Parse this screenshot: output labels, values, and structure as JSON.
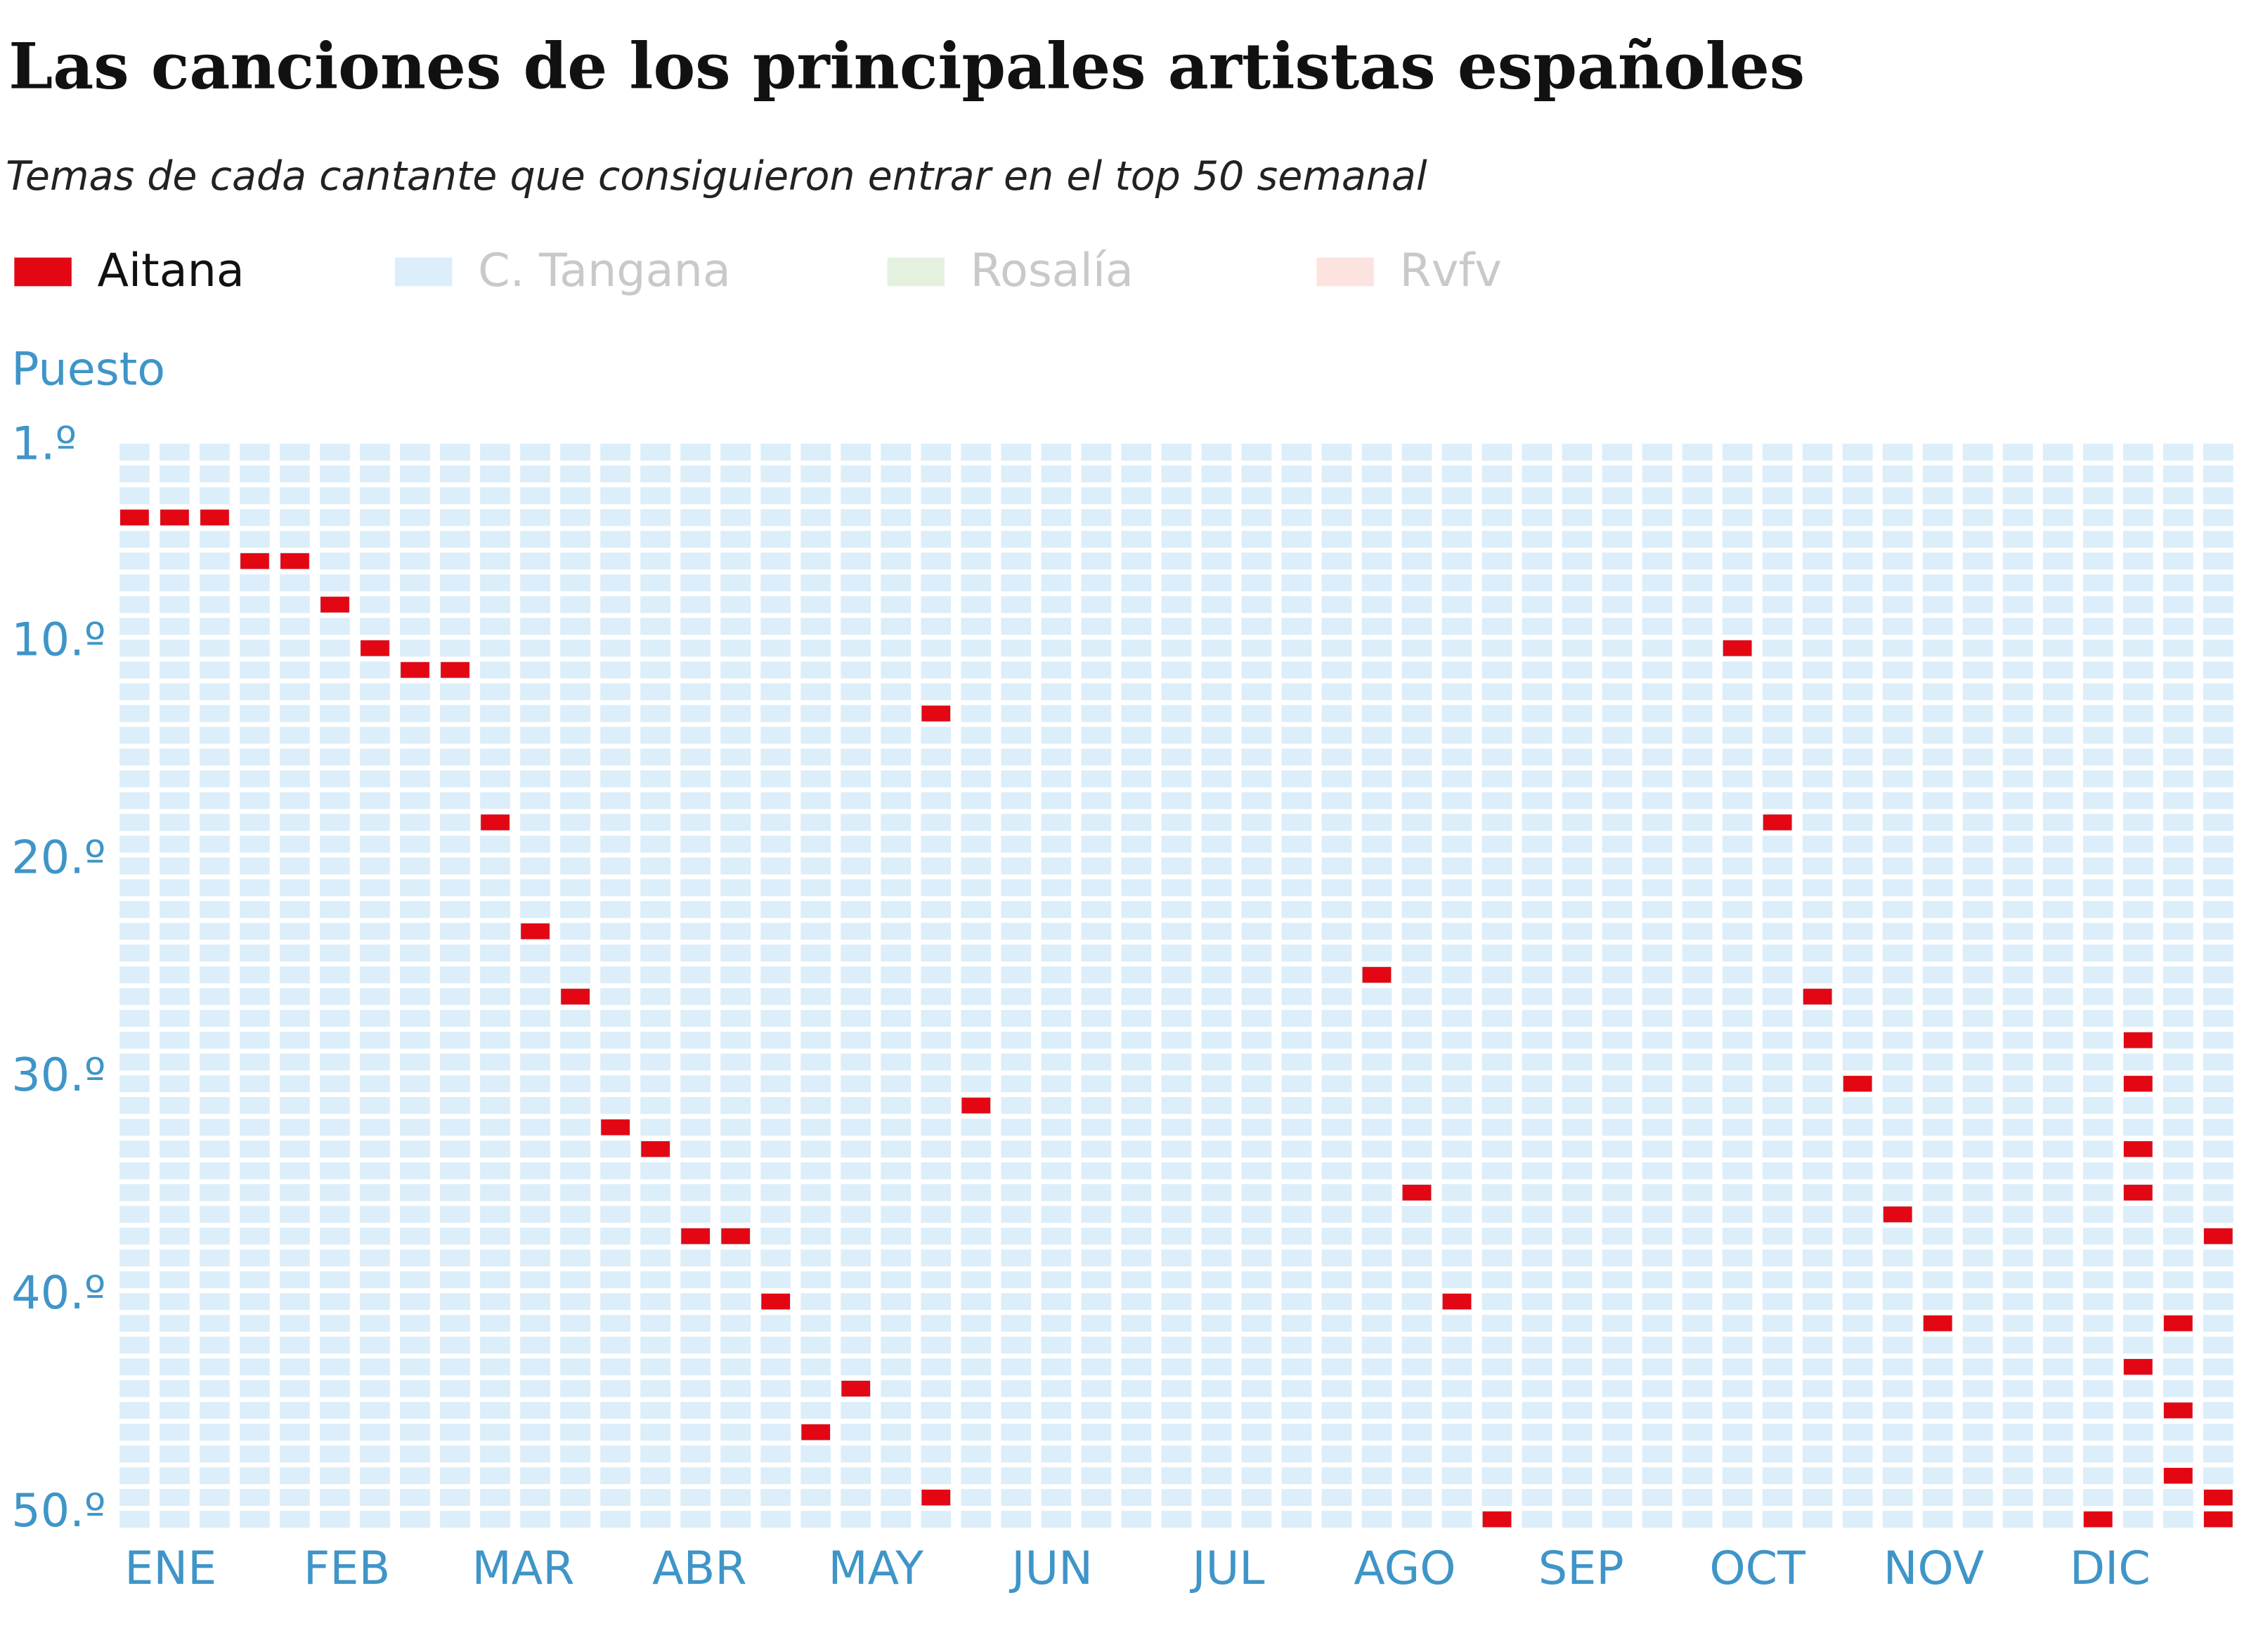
{
  "chart_data": {
    "type": "scatter",
    "title": "Las canciones de los principales artistas españoles",
    "subtitle": "Temas de cada cantante que consiguieron entrar en el top 50 semanal",
    "y_label": "Puesto",
    "xlim": [
      1,
      53
    ],
    "ylim": [
      1,
      50
    ],
    "y_inverted": true,
    "cell_color": "#dbeef9",
    "xticks": [
      {
        "value": 1.9,
        "label": "ENE"
      },
      {
        "value": 6.3,
        "label": "FEB"
      },
      {
        "value": 10.7,
        "label": "MAR"
      },
      {
        "value": 15.1,
        "label": "ABR"
      },
      {
        "value": 19.5,
        "label": "MAY"
      },
      {
        "value": 23.9,
        "label": "JUN"
      },
      {
        "value": 28.3,
        "label": "JUL"
      },
      {
        "value": 32.7,
        "label": "AGO"
      },
      {
        "value": 37.1,
        "label": "SEP"
      },
      {
        "value": 41.5,
        "label": "OCT"
      },
      {
        "value": 45.9,
        "label": "NOV"
      },
      {
        "value": 50.3,
        "label": "DIC"
      }
    ],
    "yticks": [
      {
        "value": 1,
        "label": "1.º"
      },
      {
        "value": 10,
        "label": "10.º"
      },
      {
        "value": 20,
        "label": "20.º"
      },
      {
        "value": 30,
        "label": "30.º"
      },
      {
        "value": 40,
        "label": "40.º"
      },
      {
        "value": 50,
        "label": "50.º"
      }
    ],
    "series": [
      {
        "name": "Aitana",
        "color": "#e30613",
        "visible": true,
        "x": [
          1,
          2,
          3,
          4,
          5,
          6,
          7,
          8,
          9,
          10,
          11,
          12,
          13,
          14,
          15,
          16,
          17,
          18,
          19,
          21,
          21,
          22,
          32,
          33,
          34,
          35,
          41,
          42,
          43,
          44,
          45,
          46,
          50,
          51,
          51,
          51,
          51,
          51,
          52,
          52,
          52,
          53,
          53,
          53
        ],
        "values": [
          4,
          4,
          4,
          6,
          6,
          8,
          10,
          11,
          11,
          18,
          23,
          26,
          32,
          33,
          37,
          37,
          40,
          46,
          44,
          13,
          49,
          31,
          25,
          35,
          40,
          50,
          10,
          18,
          26,
          30,
          36,
          41,
          50,
          28,
          30,
          33,
          35,
          43,
          41,
          45,
          48,
          37,
          49,
          50
        ]
      },
      {
        "name": "C. Tangana",
        "color": "#dbeef9",
        "visible": false,
        "x": [],
        "values": []
      },
      {
        "name": "Rosalía",
        "color": "#e3f1de",
        "visible": false,
        "x": [],
        "values": []
      },
      {
        "name": "Rvfv",
        "color": "#fce3df",
        "visible": false,
        "x": [],
        "values": []
      }
    ]
  }
}
